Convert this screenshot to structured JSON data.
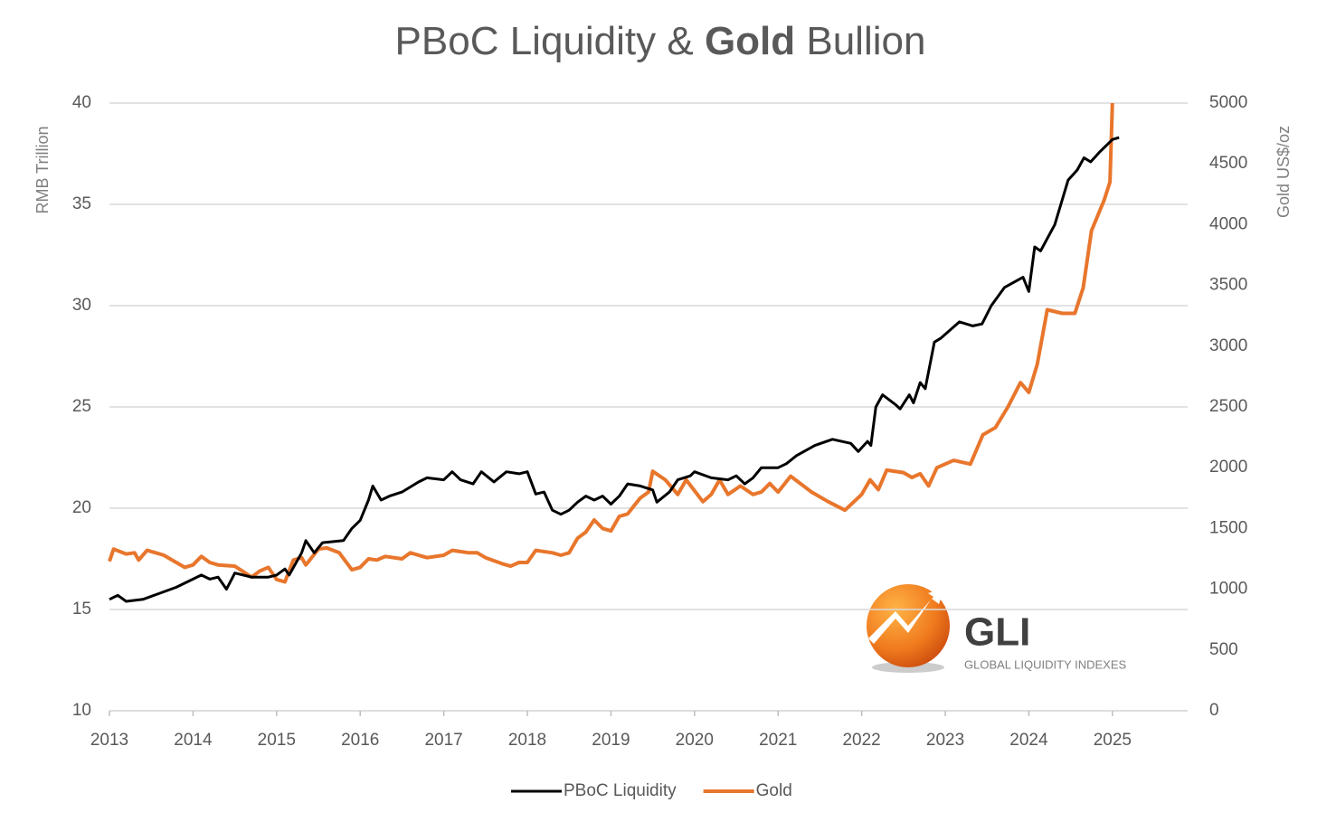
{
  "chart_data": {
    "type": "line",
    "title": "PBoC Liquidity & Gold Bullion",
    "y_label": "RMB Trillion",
    "y2_label": "Gold US$/oz",
    "logo": {
      "text": "GLI",
      "subtitle": "GLOBAL LIQUIDITY INDEXES"
    },
    "xlim": [
      2013,
      2025.9
    ],
    "xticks": [
      2013,
      2014,
      2015,
      2016,
      2017,
      2018,
      2019,
      2020,
      2021,
      2022,
      2023,
      2024,
      2025
    ],
    "ylim": [
      10,
      40
    ],
    "yticks": [
      10,
      15,
      20,
      25,
      30,
      35,
      40
    ],
    "y2lim": [
      0,
      5000
    ],
    "y2ticks": [
      0,
      500,
      1000,
      1500,
      2000,
      2500,
      3000,
      3500,
      4000,
      4500,
      5000
    ],
    "grid": true,
    "legend": "bottom",
    "series": [
      {
        "name": "PBoC Liquidity",
        "color": "#000000",
        "x": [
          2013.0,
          2013.1,
          2013.2,
          2013.4,
          2013.6,
          2013.8,
          2014.0,
          2014.1,
          2014.2,
          2014.3,
          2014.4,
          2014.5,
          2014.7,
          2014.9,
          2015.0,
          2015.1,
          2015.15,
          2015.3,
          2015.35,
          2015.45,
          2015.55,
          2015.8,
          2015.9,
          2016.0,
          2016.1,
          2016.15,
          2016.25,
          2016.35,
          2016.5,
          2016.7,
          2016.8,
          2017.0,
          2017.1,
          2017.2,
          2017.35,
          2017.45,
          2017.6,
          2017.75,
          2017.9,
          2018.0,
          2018.1,
          2018.2,
          2018.3,
          2018.4,
          2018.5,
          2018.6,
          2018.7,
          2018.8,
          2018.9,
          2019.0,
          2019.1,
          2019.2,
          2019.35,
          2019.5,
          2019.55,
          2019.7,
          2019.8,
          2019.95,
          2020.0,
          2020.2,
          2020.4,
          2020.5,
          2020.6,
          2020.7,
          2020.8,
          2021.0,
          2021.1,
          2021.22,
          2021.44,
          2021.65,
          2021.87,
          2021.96,
          2022.07,
          2022.11,
          2022.17,
          2022.25,
          2022.41,
          2022.46,
          2022.57,
          2022.62,
          2022.7,
          2022.76,
          2022.87,
          2022.95,
          2023.17,
          2023.33,
          2023.44,
          2023.55,
          2023.71,
          2023.93,
          2024.0,
          2024.07,
          2024.14,
          2024.31,
          2024.47,
          2024.58,
          2024.66,
          2024.74,
          2024.85,
          2025.0,
          2025.08
        ],
        "values": [
          15.5,
          15.7,
          15.4,
          15.5,
          15.8,
          16.1,
          16.5,
          16.7,
          16.5,
          16.6,
          16.0,
          16.8,
          16.6,
          16.6,
          16.7,
          17.0,
          16.7,
          17.8,
          18.4,
          17.8,
          18.3,
          18.4,
          19.0,
          19.4,
          20.4,
          21.1,
          20.4,
          20.6,
          20.8,
          21.3,
          21.5,
          21.4,
          21.8,
          21.4,
          21.2,
          21.8,
          21.3,
          21.8,
          21.7,
          21.8,
          20.7,
          20.8,
          19.9,
          19.7,
          19.9,
          20.3,
          20.6,
          20.4,
          20.6,
          20.2,
          20.6,
          21.2,
          21.1,
          20.9,
          20.3,
          20.8,
          21.4,
          21.6,
          21.8,
          21.5,
          21.4,
          21.6,
          21.2,
          21.5,
          22.0,
          22.0,
          22.2,
          22.6,
          23.1,
          23.4,
          23.2,
          22.8,
          23.3,
          23.1,
          25.0,
          25.6,
          25.1,
          24.9,
          25.6,
          25.2,
          26.2,
          25.9,
          28.2,
          28.4,
          29.2,
          29.0,
          29.1,
          30.0,
          30.9,
          31.4,
          30.7,
          32.9,
          32.7,
          34.0,
          36.2,
          36.7,
          37.3,
          37.1,
          37.6,
          38.2,
          38.3
        ]
      },
      {
        "name": "Gold",
        "color": "#e8762c",
        "axis": "y2",
        "x": [
          2013.0,
          2013.05,
          2013.2,
          2013.3,
          2013.35,
          2013.45,
          2013.6,
          2013.65,
          2013.8,
          2013.9,
          2014.0,
          2014.1,
          2014.2,
          2014.3,
          2014.5,
          2014.7,
          2014.8,
          2014.9,
          2015.0,
          2015.1,
          2015.2,
          2015.3,
          2015.35,
          2015.5,
          2015.6,
          2015.75,
          2015.9,
          2016.0,
          2016.1,
          2016.2,
          2016.3,
          2016.5,
          2016.6,
          2016.8,
          2017.0,
          2017.1,
          2017.3,
          2017.4,
          2017.5,
          2017.7,
          2017.8,
          2017.9,
          2018.0,
          2018.1,
          2018.3,
          2018.4,
          2018.5,
          2018.6,
          2018.7,
          2018.8,
          2018.9,
          2019.0,
          2019.1,
          2019.2,
          2019.35,
          2019.45,
          2019.5,
          2019.65,
          2019.8,
          2019.9,
          2020.1,
          2020.2,
          2020.3,
          2020.4,
          2020.55,
          2020.7,
          2020.8,
          2020.9,
          2021.0,
          2021.15,
          2021.4,
          2021.6,
          2021.8,
          2022.0,
          2022.1,
          2022.2,
          2022.3,
          2022.5,
          2022.6,
          2022.7,
          2022.8,
          2022.9,
          2023.1,
          2023.3,
          2023.45,
          2023.6,
          2023.75,
          2023.9,
          2024.0,
          2024.1,
          2024.22,
          2024.4,
          2024.55,
          2024.65,
          2024.75,
          2024.9,
          2024.97,
          2025.0
        ],
        "values": [
          1230,
          1330,
          1290,
          1300,
          1240,
          1320,
          1290,
          1280,
          1220,
          1180,
          1200,
          1270,
          1220,
          1200,
          1190,
          1100,
          1150,
          1180,
          1080,
          1060,
          1240,
          1260,
          1200,
          1330,
          1340,
          1300,
          1160,
          1180,
          1250,
          1240,
          1270,
          1250,
          1300,
          1260,
          1280,
          1320,
          1300,
          1300,
          1260,
          1210,
          1190,
          1220,
          1220,
          1320,
          1300,
          1280,
          1300,
          1420,
          1470,
          1570,
          1500,
          1480,
          1600,
          1620,
          1750,
          1800,
          1970,
          1900,
          1780,
          1900,
          1720,
          1780,
          1900,
          1780,
          1850,
          1780,
          1800,
          1870,
          1800,
          1930,
          1800,
          1720,
          1650,
          1780,
          1900,
          1820,
          1980,
          1960,
          1920,
          1950,
          1850,
          2000,
          2060,
          2030,
          2270,
          2330,
          2500,
          2700,
          2620,
          2850,
          3300,
          3270,
          3270,
          3480,
          3950,
          4200,
          4350,
          5000
        ]
      }
    ]
  }
}
